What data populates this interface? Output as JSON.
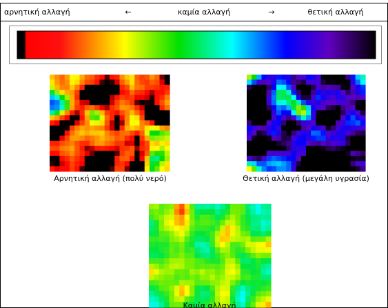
{
  "header": {
    "left": "αρνητική αλλαγή",
    "left_arrow": "←",
    "center": "καμία αλλαγή",
    "right_arrow": "→",
    "right": "θετική αλλαγή"
  },
  "panels": [
    {
      "caption": "Αρνητική αλλαγή (πολύ νερό)"
    },
    {
      "caption": "Θετική αλλαγή (μεγάλη υγρασία)"
    },
    {
      "caption": "Καμία αλλαγή"
    }
  ]
}
